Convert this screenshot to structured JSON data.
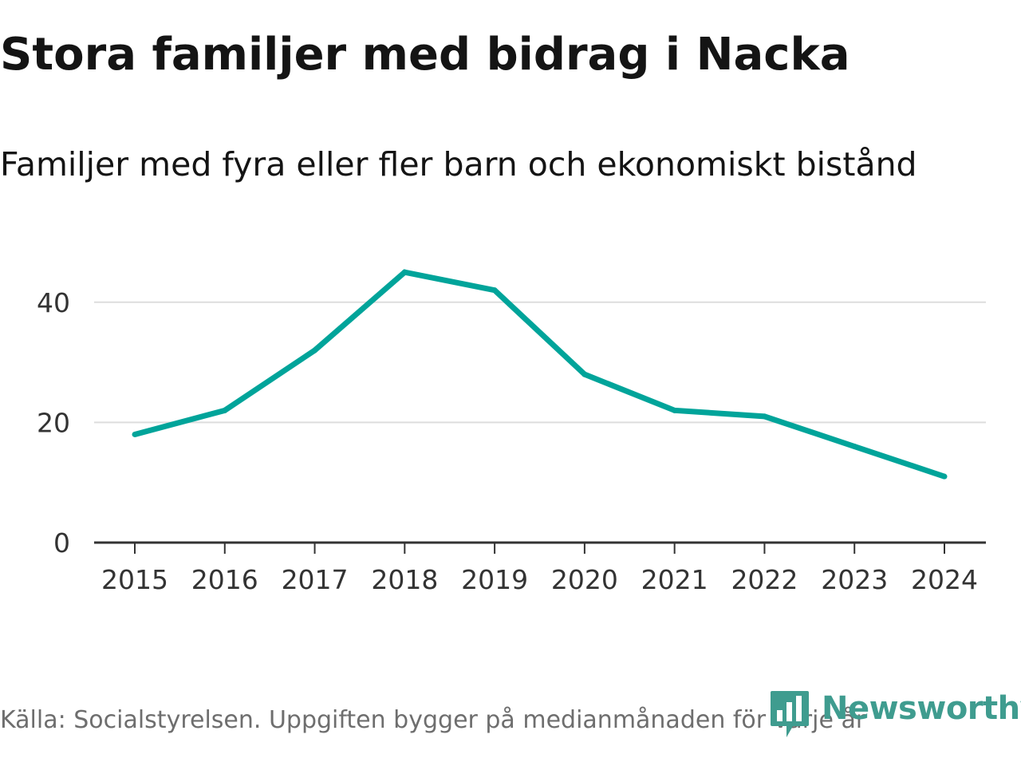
{
  "header": {
    "title": "Stora familjer med bidrag i Nacka",
    "subtitle": "Familjer med fyra eller fler barn och ekonomiskt bistånd"
  },
  "footer": {
    "source": "Källa: Socialstyrelsen. Uppgiften bygger på medianmånaden för varje år",
    "brand": "Newsworthy",
    "brand_icon": "bar-chart-icon"
  },
  "colors": {
    "line": "#00a49a",
    "grid": "#dddddd",
    "axis": "#333333",
    "brand": "#3f9c8f"
  },
  "chart_data": {
    "type": "line",
    "title": "Stora familjer med bidrag i Nacka",
    "subtitle": "Familjer med fyra eller fler barn och ekonomiskt bistånd",
    "xlabel": "",
    "ylabel": "",
    "x": [
      "2015",
      "2016",
      "2017",
      "2018",
      "2019",
      "2020",
      "2021",
      "2022",
      "2023",
      "2024"
    ],
    "series": [
      {
        "values": [
          18,
          22,
          32,
          45,
          42,
          28,
          22,
          21,
          16,
          11
        ]
      }
    ],
    "yticks": [
      0,
      20,
      40
    ],
    "ylim": [
      0,
      48
    ],
    "grid": true,
    "legend": "none"
  }
}
